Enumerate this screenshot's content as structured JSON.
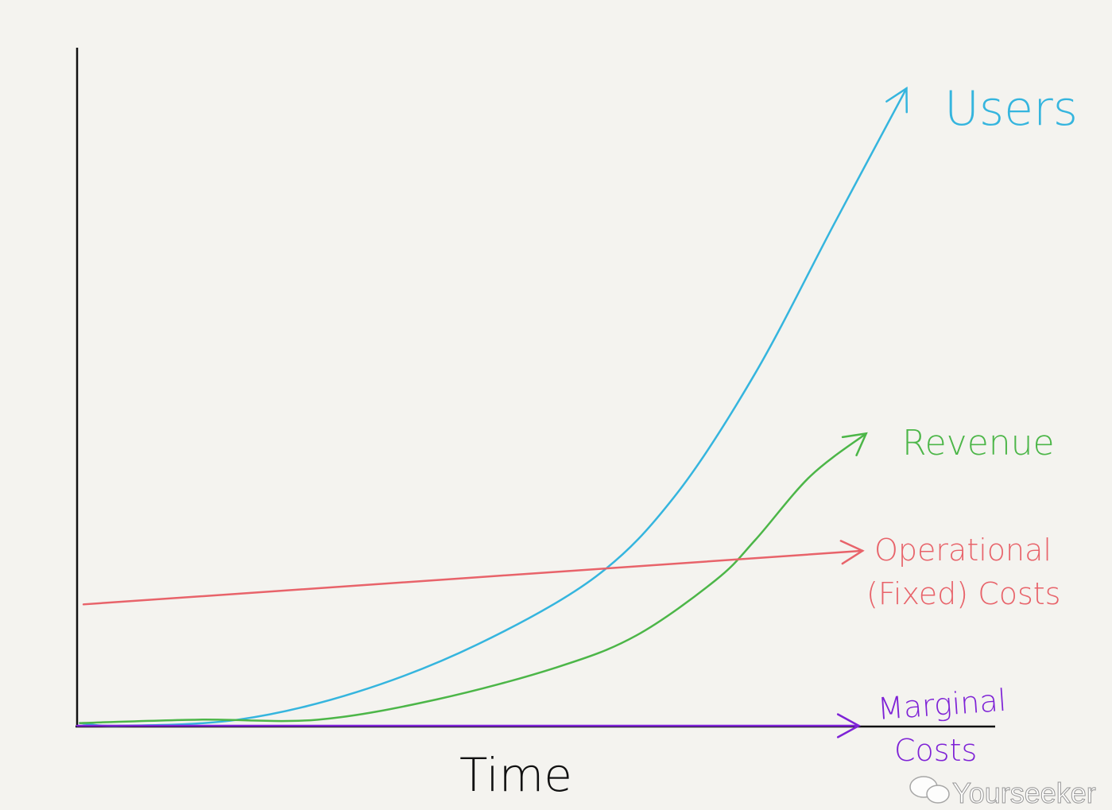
{
  "chart_data": {
    "type": "line",
    "title": "",
    "xlabel": "Time",
    "ylabel": "",
    "xlim": [
      0,
      100
    ],
    "ylim": [
      0,
      100
    ],
    "grid": false,
    "legend": "inline labels at line ends",
    "series": [
      {
        "name": "Users",
        "color": "#35b5de",
        "x": [
          0.3,
          4.6,
          17.6,
          30.6,
          43.7,
          56.6,
          65.3,
          74,
          82.6,
          90.5
        ],
        "y": [
          0.4,
          0,
          0.9,
          5,
          12,
          22,
          34,
          52,
          74,
          94
        ]
      },
      {
        "name": "Revenue",
        "color": "#4cb648",
        "x": [
          0.3,
          13.3,
          26.3,
          39.3,
          52.3,
          61,
          69.7,
          74,
          80,
          86.1
        ],
        "y": [
          0.4,
          0.9,
          0.9,
          3.9,
          8.6,
          13.3,
          21.5,
          27.4,
          36.8,
          43.1
        ]
      },
      {
        "name": "Operational (Fixed) Costs",
        "label_lines": [
          "Operational",
          "(Fixed) Costs"
        ],
        "color": "#e8636a",
        "x": [
          0.7,
          85.7
        ],
        "y": [
          17.9,
          25.8
        ]
      },
      {
        "name": "Marginal Costs",
        "label_lines": [
          "Marginal",
          "Costs"
        ],
        "color": "#7e22d6",
        "x": [
          0,
          85.3
        ],
        "y": [
          0,
          0
        ]
      }
    ]
  },
  "watermark": "Yourseeker"
}
